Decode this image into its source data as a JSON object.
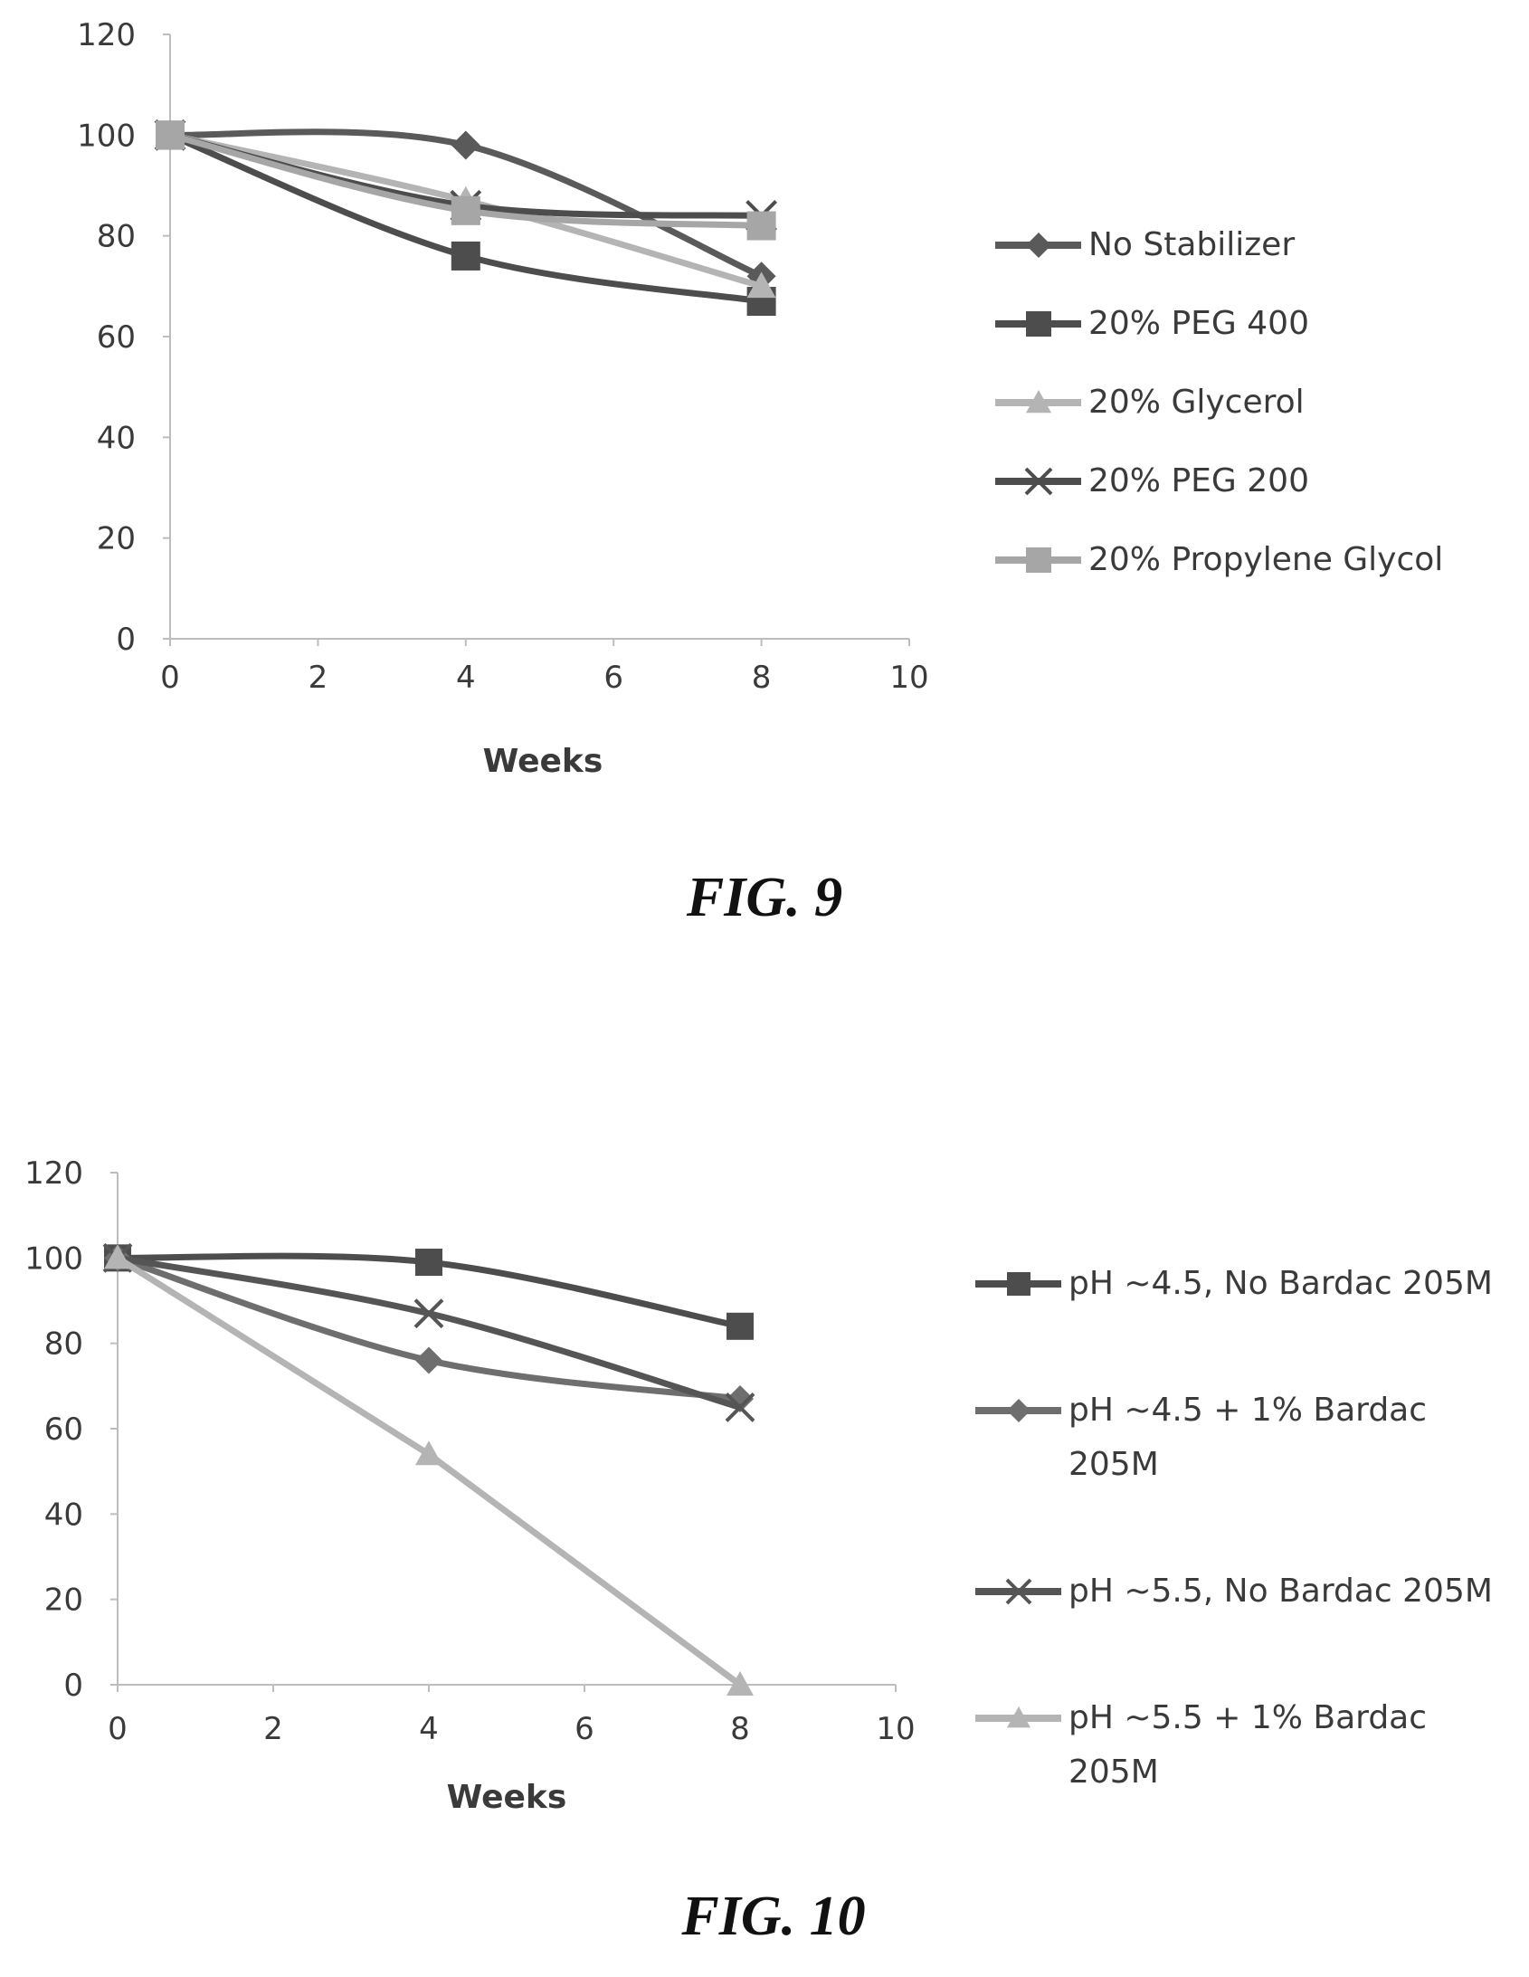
{
  "colors": {
    "axis": "#bdbdbd",
    "dark": "#4d4d4d",
    "medium": "#7a7a7a",
    "light": "#b4b4b4"
  },
  "chart_data": [
    {
      "type": "line",
      "title": "",
      "caption": "FIG. 9",
      "xlabel": "Weeks",
      "ylabel": "",
      "xlim": [
        0,
        10
      ],
      "ylim": [
        0,
        120
      ],
      "xticks": [
        "0",
        "2",
        "4",
        "6",
        "8",
        "10"
      ],
      "yticks": [
        "0",
        "20",
        "40",
        "60",
        "80",
        "100",
        "120"
      ],
      "legend_position": "right",
      "grid": false,
      "series": [
        {
          "name": "No Stabilizer",
          "x": [
            0,
            4,
            8
          ],
          "y": [
            100,
            98,
            72
          ],
          "marker": "diamond",
          "color": "#5a5a5a"
        },
        {
          "name": "20% PEG 400",
          "x": [
            0,
            4,
            8
          ],
          "y": [
            100,
            76,
            67
          ],
          "marker": "square",
          "color": "#4d4d4d"
        },
        {
          "name": "20% Glycerol",
          "x": [
            0,
            4,
            8
          ],
          "y": [
            100,
            87,
            70
          ],
          "marker": "triangle",
          "color": "#b4b4b4"
        },
        {
          "name": "20% PEG 200",
          "x": [
            0,
            4,
            8
          ],
          "y": [
            100,
            86,
            84
          ],
          "marker": "x",
          "color": "#4d4d4d"
        },
        {
          "name": "20% Propylene Glycol",
          "x": [
            0,
            4,
            8
          ],
          "y": [
            100,
            85,
            82
          ],
          "marker": "square",
          "color": "#a6a6a6"
        }
      ]
    },
    {
      "type": "line",
      "title": "",
      "caption": "FIG. 10",
      "xlabel": "Weeks",
      "ylabel": "",
      "xlim": [
        0,
        10
      ],
      "ylim": [
        0,
        120
      ],
      "xticks": [
        "0",
        "2",
        "4",
        "6",
        "8",
        "10"
      ],
      "yticks": [
        "0",
        "20",
        "40",
        "60",
        "80",
        "100",
        "120"
      ],
      "legend_position": "right",
      "grid": false,
      "series": [
        {
          "name": "pH ~4.5, No Bardac 205M",
          "legend_lines": [
            "pH ~4.5, No Bardac 205M"
          ],
          "x": [
            0,
            4,
            8
          ],
          "y": [
            100,
            99,
            84
          ],
          "marker": "square",
          "color": "#4d4d4d"
        },
        {
          "name": "pH ~4.5 + 1% Bardac 205M",
          "legend_lines": [
            "pH ~4.5 + 1% Bardac",
            "205M"
          ],
          "x": [
            0,
            4,
            8
          ],
          "y": [
            100,
            76,
            67
          ],
          "marker": "diamond",
          "color": "#6e6e6e"
        },
        {
          "name": "pH ~5.5, No Bardac 205M",
          "legend_lines": [
            "pH ~5.5, No Bardac 205M"
          ],
          "x": [
            0,
            4,
            8
          ],
          "y": [
            100,
            87,
            65
          ],
          "marker": "x",
          "color": "#555555"
        },
        {
          "name": "pH ~5.5 + 1% Bardac 205M",
          "legend_lines": [
            "pH ~5.5 + 1% Bardac",
            "205M"
          ],
          "x": [
            0,
            4,
            8
          ],
          "y": [
            100,
            54,
            0
          ],
          "marker": "triangle",
          "color": "#b4b4b4"
        }
      ]
    }
  ]
}
